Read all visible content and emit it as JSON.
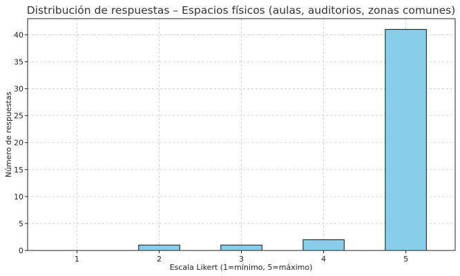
{
  "chart_data": {
    "type": "bar",
    "title": "Distribución de respuestas – Espacios físicos (aulas, auditorios, zonas comunes)",
    "xlabel": "Escala Likert (1=mínimo, 5=máximo)",
    "ylabel": "Número de respuestas",
    "categories": [
      "1",
      "2",
      "3",
      "4",
      "5"
    ],
    "values": [
      0,
      1,
      1,
      2,
      41
    ],
    "ylim": [
      0,
      43
    ],
    "yticks": [
      0,
      5,
      10,
      15,
      20,
      25,
      30,
      35,
      40
    ],
    "grid": true,
    "bar_color": "#87ceeb",
    "bar_edge_color": "#111111"
  }
}
